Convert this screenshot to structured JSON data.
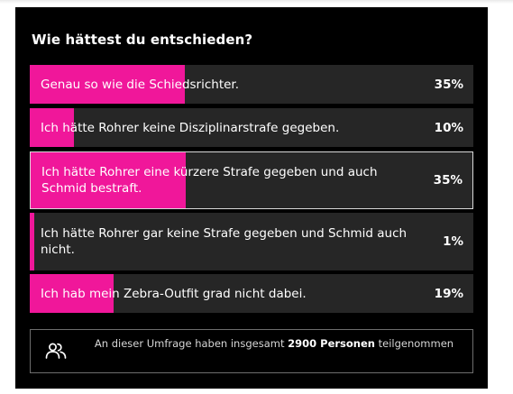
{
  "poll": {
    "question": "Wie hättest du entschieden?",
    "options": [
      {
        "label": "Genau so wie die Schiedsrichter.",
        "percent_text": "35%",
        "share": 35,
        "selected": false
      },
      {
        "label": "Ich hätte Rohrer keine Disziplinarstrafe gegeben.",
        "percent_text": "10%",
        "share": 10,
        "selected": false
      },
      {
        "label": "Ich hätte Rohrer eine kürzere Strafe gegeben und auch Schmid bestraft.",
        "percent_text": "35%",
        "share": 35,
        "selected": true
      },
      {
        "label": "Ich hätte Rohrer gar keine Strafe gegeben und Schmid auch nicht.",
        "percent_text": "1%",
        "share": 1,
        "selected": false
      },
      {
        "label": "Ich hab mein Zebra-Outfit grad nicht dabei.",
        "percent_text": "19%",
        "share": 19,
        "selected": false
      }
    ],
    "footer": {
      "icon": "people-icon",
      "text_before": "An dieser Umfrage haben insgesamt ",
      "count_text": "2900 Personen",
      "text_after": " teilgenommen"
    }
  },
  "colors": {
    "background": "#000000",
    "option_bg": "#262626",
    "accent": "#f0179a",
    "text": "#ffffff"
  }
}
